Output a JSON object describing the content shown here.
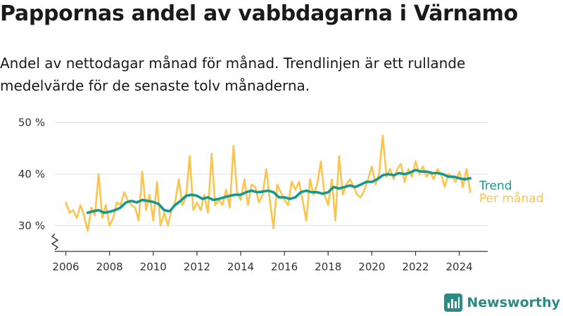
{
  "title": "Pappornas andel av vabbdagarna i Värnamo",
  "subtitle": "Andel av nettodagar månad för månad. Trendlinjen är ett rullande medelvärde för de senaste tolv månaderna.",
  "logo_text": "Newsworthy",
  "chart_data": {
    "type": "line",
    "xlabel": "",
    "ylabel": "",
    "xlim": [
      2005.5,
      2025.3
    ],
    "ylim": [
      25,
      52
    ],
    "x_ticks": [
      2006,
      2008,
      2010,
      2012,
      2014,
      2016,
      2018,
      2020,
      2022,
      2024
    ],
    "x_tick_labels": [
      "2006",
      "2008",
      "2010",
      "2012",
      "2014",
      "2016",
      "2018",
      "2020",
      "2022",
      "2024"
    ],
    "y_ticks": [
      30,
      40,
      50
    ],
    "y_tick_labels": [
      "30 %",
      "40 %",
      "50 %"
    ],
    "y_axis_break": true,
    "grid": "horizontal",
    "legend": "inline-right",
    "series": [
      {
        "name": "Trend",
        "color": "#17988c",
        "x": [
          2007.0,
          2007.25,
          2007.5,
          2007.75,
          2008.0,
          2008.25,
          2008.5,
          2008.75,
          2009.0,
          2009.25,
          2009.5,
          2009.75,
          2010.0,
          2010.25,
          2010.5,
          2010.75,
          2011.0,
          2011.25,
          2011.5,
          2011.75,
          2012.0,
          2012.25,
          2012.5,
          2012.75,
          2013.0,
          2013.25,
          2013.5,
          2013.75,
          2014.0,
          2014.25,
          2014.5,
          2014.75,
          2015.0,
          2015.25,
          2015.5,
          2015.75,
          2016.0,
          2016.25,
          2016.5,
          2016.75,
          2017.0,
          2017.25,
          2017.5,
          2017.75,
          2018.0,
          2018.25,
          2018.5,
          2018.75,
          2019.0,
          2019.25,
          2019.5,
          2019.75,
          2020.0,
          2020.25,
          2020.5,
          2020.75,
          2021.0,
          2021.25,
          2021.5,
          2021.75,
          2022.0,
          2022.25,
          2022.5,
          2022.75,
          2023.0,
          2023.25,
          2023.5,
          2023.75,
          2024.0,
          2024.25,
          2024.5
        ],
        "values": [
          32.5,
          32.8,
          33.0,
          32.5,
          32.7,
          33.0,
          33.5,
          34.5,
          34.8,
          34.5,
          35.0,
          34.8,
          34.6,
          34.2,
          33.0,
          32.8,
          34.0,
          34.8,
          35.8,
          36.0,
          35.8,
          35.2,
          35.5,
          35.0,
          35.2,
          35.5,
          35.8,
          36.0,
          36.0,
          36.5,
          36.8,
          36.5,
          36.6,
          36.8,
          36.5,
          35.5,
          35.5,
          35.2,
          35.5,
          36.5,
          36.8,
          36.5,
          36.5,
          36.2,
          36.5,
          37.5,
          37.2,
          37.5,
          37.8,
          37.5,
          38.0,
          38.5,
          38.5,
          39.0,
          39.8,
          40.0,
          39.8,
          40.2,
          40.0,
          40.3,
          40.8,
          40.5,
          40.5,
          40.2,
          40.2,
          40.0,
          39.5,
          39.5,
          39.2,
          39.0,
          39.2
        ]
      },
      {
        "name": "Per månad",
        "color": "#fcc44d",
        "x": [
          2006.0,
          2006.17,
          2006.33,
          2006.5,
          2006.67,
          2006.83,
          2007.0,
          2007.17,
          2007.33,
          2007.5,
          2007.67,
          2007.83,
          2008.0,
          2008.17,
          2008.33,
          2008.5,
          2008.67,
          2008.83,
          2009.0,
          2009.17,
          2009.33,
          2009.5,
          2009.67,
          2009.83,
          2010.0,
          2010.17,
          2010.33,
          2010.5,
          2010.67,
          2010.83,
          2011.0,
          2011.17,
          2011.33,
          2011.5,
          2011.67,
          2011.83,
          2012.0,
          2012.17,
          2012.33,
          2012.5,
          2012.67,
          2012.83,
          2013.0,
          2013.17,
          2013.33,
          2013.5,
          2013.67,
          2013.83,
          2014.0,
          2014.17,
          2014.33,
          2014.5,
          2014.67,
          2014.83,
          2015.0,
          2015.17,
          2015.33,
          2015.5,
          2015.67,
          2015.83,
          2016.0,
          2016.17,
          2016.33,
          2016.5,
          2016.67,
          2016.83,
          2017.0,
          2017.17,
          2017.33,
          2017.5,
          2017.67,
          2017.83,
          2018.0,
          2018.17,
          2018.33,
          2018.5,
          2018.67,
          2018.83,
          2019.0,
          2019.17,
          2019.33,
          2019.5,
          2019.67,
          2019.83,
          2020.0,
          2020.17,
          2020.33,
          2020.5,
          2020.67,
          2020.83,
          2021.0,
          2021.17,
          2021.33,
          2021.5,
          2021.67,
          2021.83,
          2022.0,
          2022.17,
          2022.33,
          2022.5,
          2022.67,
          2022.83,
          2023.0,
          2023.17,
          2023.33,
          2023.5,
          2023.67,
          2023.83,
          2024.0,
          2024.17,
          2024.33,
          2024.5
        ],
        "values": [
          34.5,
          32.5,
          33.0,
          31.5,
          34.0,
          32.0,
          29.0,
          33.5,
          32.0,
          40.0,
          31.5,
          34.0,
          30.0,
          31.5,
          34.5,
          34.0,
          36.5,
          35.0,
          34.0,
          33.5,
          31.0,
          40.5,
          33.0,
          36.0,
          31.0,
          38.5,
          30.0,
          32.5,
          30.0,
          33.0,
          34.5,
          39.0,
          34.0,
          35.5,
          43.5,
          33.0,
          34.5,
          33.0,
          36.0,
          32.5,
          44.0,
          34.0,
          35.0,
          34.0,
          37.0,
          33.5,
          45.5,
          36.5,
          35.0,
          39.0,
          34.0,
          38.0,
          37.5,
          34.5,
          36.0,
          41.0,
          35.0,
          29.5,
          38.0,
          36.5,
          35.0,
          34.0,
          38.5,
          37.0,
          38.5,
          35.0,
          31.0,
          39.0,
          36.0,
          38.0,
          42.5,
          36.0,
          34.0,
          39.0,
          31.0,
          43.5,
          36.0,
          38.0,
          39.0,
          37.5,
          36.0,
          35.5,
          37.0,
          39.0,
          41.5,
          38.0,
          40.0,
          47.5,
          39.5,
          41.0,
          39.0,
          41.0,
          42.0,
          38.5,
          41.0,
          39.5,
          42.5,
          40.0,
          41.5,
          39.5,
          40.5,
          39.0,
          41.0,
          40.0,
          37.5,
          40.0,
          39.5,
          38.5,
          40.5,
          37.5,
          41.0,
          36.5
        ]
      }
    ]
  }
}
